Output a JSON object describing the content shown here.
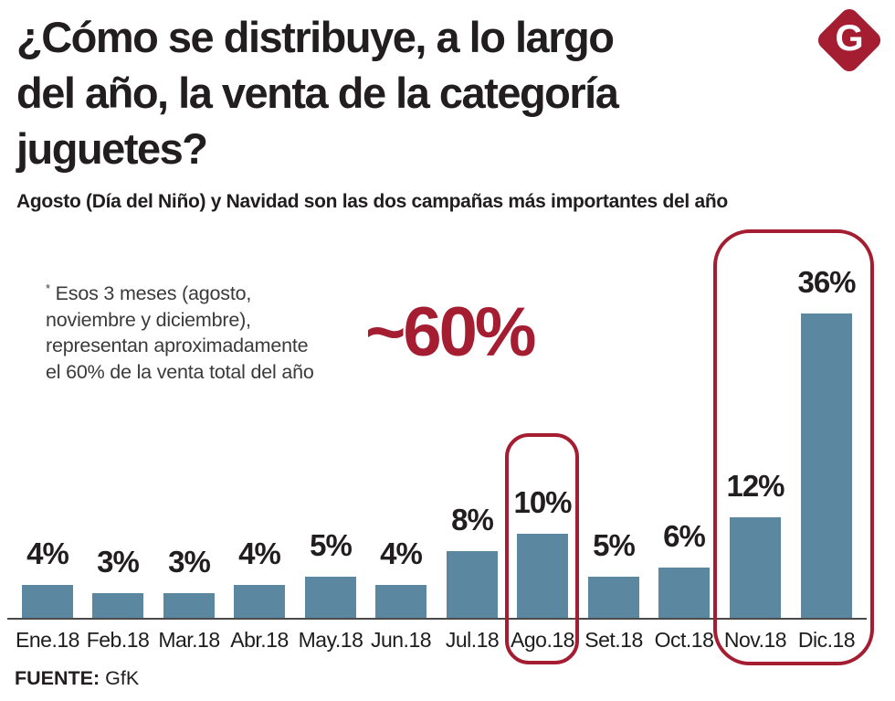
{
  "header": {
    "title_lines": [
      "¿Cómo se distribuye, a lo largo",
      "del año, la venta de la categoría",
      "juguetes?"
    ],
    "subtitle": "Agosto (Día del Niño) y Navidad son las dos campañas más importantes del año",
    "logo": {
      "letter": "G",
      "color": "#a41d31"
    }
  },
  "annotation": {
    "asterisk": "*",
    "lines": [
      "Esos 3 meses (agosto,",
      "noviembre y diciembre),",
      "representan aproximadamente",
      "el 60% de la venta total del año"
    ],
    "highlight_value": "~60%"
  },
  "chart_data": {
    "type": "bar",
    "title": "¿Cómo se distribuye, a lo largo del año, la venta de la categoría juguetes?",
    "subtitle": "Agosto (Día del Niño) y Navidad son las dos campañas más importantes del año",
    "categories": [
      "Ene.18",
      "Feb.18",
      "Mar.18",
      "Abr.18",
      "May.18",
      "Jun.18",
      "Jul.18",
      "Ago.18",
      "Set.18",
      "Oct.18",
      "Nov.18",
      "Dic.18"
    ],
    "values": [
      4,
      3,
      3,
      4,
      5,
      4,
      8,
      10,
      5,
      6,
      12,
      36
    ],
    "unit": "%",
    "xlabel": "",
    "ylabel": "",
    "ylim": [
      0,
      36
    ],
    "grid": false,
    "value_labels": true,
    "bar_color": "#5b87a1",
    "axis_color": "#4a4a4a",
    "highlight_color": "#a41d31",
    "highlight_boxes": [
      {
        "months": [
          "Ago.18"
        ]
      },
      {
        "months": [
          "Nov.18",
          "Dic.18"
        ]
      }
    ]
  },
  "footer": {
    "source_label": "FUENTE:",
    "source_value": "GfK"
  }
}
